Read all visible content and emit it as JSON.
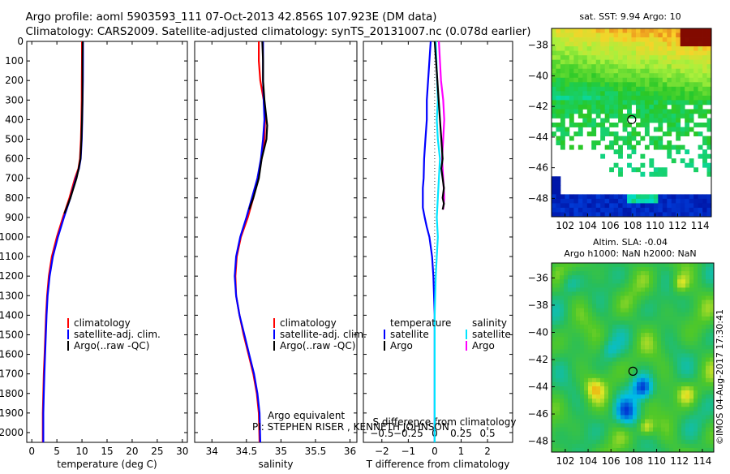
{
  "header": {
    "title_line1": "Argo profile: aoml 5903593_111 07-Oct-2013 42.856S 107.923E (DM data)",
    "title_line2": "Climatology: CARS2009. Satellite-adjusted climatology: synTS_20131007.nc (0.078d earlier)"
  },
  "colors": {
    "climatology": "#ff0000",
    "satellite": "#0000ff",
    "argo": "#000000",
    "sal_sat": "#00e5ff",
    "sal_argo": "#ff00ff"
  },
  "depth_axis": {
    "ticks": [
      0,
      100,
      200,
      300,
      400,
      500,
      600,
      700,
      800,
      900,
      1000,
      1100,
      1200,
      1300,
      1400,
      1500,
      1600,
      1700,
      1800,
      1900,
      2000
    ],
    "range": [
      0,
      2050
    ]
  },
  "chart_data": [
    {
      "type": "line",
      "name": "temperature",
      "xlabel": "temperature (deg C)",
      "ylabel": "depth",
      "xlim": [
        -1,
        31
      ],
      "ylim": [
        2050,
        0
      ],
      "xticks": [
        0,
        5,
        10,
        15,
        20,
        25,
        30
      ],
      "legend": {
        "placement": "lower-middle",
        "entries": [
          "climatology",
          "satellite-adj. clim.",
          "Argo(..raw -QC)"
        ]
      },
      "series": [
        {
          "name": "climatology",
          "color": "#ff0000",
          "x": [
            10.0,
            10.0,
            9.98,
            9.95,
            9.9,
            9.8,
            9.6,
            9.3,
            8.6,
            7.5,
            6.2,
            5.0,
            4.0,
            3.4,
            3.05,
            2.85,
            2.7,
            2.55,
            2.4,
            2.3,
            2.2,
            2.2
          ],
          "y": [
            0,
            100,
            200,
            300,
            400,
            500,
            600,
            650,
            700,
            800,
            900,
            1000,
            1100,
            1200,
            1300,
            1400,
            1500,
            1600,
            1700,
            1800,
            1900,
            2050
          ]
        },
        {
          "name": "satellite",
          "color": "#0000ff",
          "x": [
            10.2,
            10.2,
            10.18,
            10.12,
            10.05,
            9.95,
            9.75,
            9.4,
            8.8,
            7.7,
            6.4,
            5.2,
            4.2,
            3.55,
            3.15,
            2.95,
            2.8,
            2.65,
            2.5,
            2.4,
            2.3,
            2.3
          ],
          "y": [
            0,
            100,
            200,
            300,
            400,
            500,
            600,
            650,
            700,
            800,
            900,
            1000,
            1100,
            1200,
            1300,
            1400,
            1500,
            1600,
            1700,
            1800,
            1900,
            2050
          ]
        },
        {
          "name": "argo",
          "color": "#000000",
          "x": [
            10.15,
            10.1,
            10.1,
            10.08,
            10.0,
            9.9,
            9.7,
            9.35,
            8.9,
            7.7,
            6.5
          ],
          "y": [
            0,
            100,
            200,
            300,
            400,
            500,
            600,
            650,
            700,
            800,
            880
          ]
        }
      ]
    },
    {
      "type": "line",
      "name": "salinity",
      "xlabel": "salinity",
      "ylabel": "depth",
      "xlim": [
        33.75,
        36.1
      ],
      "ylim": [
        2050,
        0
      ],
      "xticks": [
        34,
        34.5,
        35,
        35.5,
        36
      ],
      "xticklabels": [
        "34",
        "34.5",
        "35",
        "35.5",
        "36"
      ],
      "legend": {
        "placement": "lower-middle",
        "entries": [
          "climatology",
          "satellite-adj. clim.",
          "Argo(..raw -QC)"
        ]
      },
      "annotation": "Argo equivalent",
      "pi_text": "PI: STEPHEN RISER , KENNETH JOHNSON",
      "series": [
        {
          "name": "climatology",
          "color": "#ff0000",
          "x": [
            34.68,
            34.68,
            34.7,
            34.75,
            34.77,
            34.76,
            34.72,
            34.66,
            34.6,
            34.52,
            34.42,
            34.36,
            34.34,
            34.35,
            34.4,
            34.46,
            34.53,
            34.6,
            34.65,
            34.68,
            34.69
          ],
          "y": [
            0,
            100,
            200,
            300,
            400,
            500,
            600,
            700,
            800,
            900,
            1000,
            1100,
            1200,
            1300,
            1400,
            1500,
            1600,
            1700,
            1800,
            1900,
            2050
          ]
        },
        {
          "name": "satellite",
          "color": "#0000ff",
          "x": [
            34.74,
            34.74,
            34.74,
            34.75,
            34.76,
            34.74,
            34.71,
            34.66,
            34.58,
            34.5,
            34.41,
            34.35,
            34.33,
            34.35,
            34.4,
            34.47,
            34.54,
            34.61,
            34.66,
            34.69,
            34.7
          ],
          "y": [
            0,
            100,
            200,
            300,
            400,
            500,
            600,
            700,
            800,
            900,
            1000,
            1100,
            1200,
            1300,
            1400,
            1500,
            1600,
            1700,
            1800,
            1900,
            2050
          ]
        },
        {
          "name": "argo",
          "color": "#000000",
          "x": [
            34.73,
            34.74,
            34.74,
            34.76,
            34.8,
            34.79,
            34.72,
            34.68,
            34.6,
            34.54
          ],
          "y": [
            0,
            100,
            200,
            300,
            430,
            500,
            600,
            700,
            800,
            860
          ]
        }
      ]
    },
    {
      "type": "line",
      "name": "difference",
      "xlabel": "T difference from climatology",
      "ylabel": "depth",
      "xlim": [
        -2.7,
        2.95
      ],
      "ylim": [
        2050,
        0
      ],
      "xticks": [
        -2,
        -1,
        0,
        1,
        2
      ],
      "xticklabels": [
        "−2",
        "−1",
        "0",
        "1",
        "2"
      ],
      "top_xlabel": "S difference from climatology",
      "top_xticks": [
        -0.5,
        -0.25,
        0,
        0.25,
        0.5
      ],
      "top_xticklabels": [
        "−0.5",
        "−0.25",
        "0",
        "0.25",
        "0.5"
      ],
      "legend": {
        "placement": "lower-middle",
        "headers": [
          "temperature",
          "salinity"
        ],
        "entries": [
          "satellite",
          "Argo",
          "satellite",
          "Argo"
        ]
      },
      "series": [
        {
          "name": "T satellite",
          "color": "#0000ff",
          "x": [
            -0.15,
            -0.2,
            -0.25,
            -0.3,
            -0.3,
            -0.35,
            -0.4,
            -0.42,
            -0.45,
            -0.45,
            -0.38,
            -0.3,
            -0.2,
            -0.1,
            -0.05,
            0,
            0,
            0,
            0
          ],
          "y": [
            0,
            100,
            200,
            300,
            400,
            500,
            600,
            700,
            750,
            850,
            900,
            950,
            1000,
            1100,
            1200,
            1400,
            1600,
            1800,
            2050
          ]
        },
        {
          "name": "S satellite",
          "color": "#00e5ff",
          "x": [
            0.01,
            0.02,
            0.03,
            0.02,
            0.03,
            0.05,
            0.04,
            0.03,
            0.02,
            0.03,
            0.02,
            0.01,
            0.0,
            0.0,
            0.0,
            0.0
          ],
          "y": [
            0,
            150,
            300,
            400,
            500,
            600,
            700,
            800,
            900,
            1000,
            1100,
            1200,
            1400,
            1600,
            1800,
            2050
          ]
        },
        {
          "name": "S argo",
          "color": "#ff00ff",
          "x": [
            0.04,
            0.05,
            0.06,
            0.08,
            0.09,
            0.08,
            0.07,
            0.08,
            0.09,
            0.08
          ],
          "y": [
            0,
            100,
            200,
            300,
            400,
            500,
            600,
            700,
            800,
            860
          ]
        },
        {
          "name": "T argo",
          "color": "#000000",
          "x": [
            0.0,
            0.05,
            0.1,
            0.15,
            0.2,
            0.25,
            0.3,
            0.25,
            0.3,
            0.35,
            0.3,
            0.35,
            0.3
          ],
          "y": [
            0,
            100,
            200,
            300,
            400,
            500,
            600,
            650,
            700,
            750,
            800,
            830,
            860
          ]
        }
      ]
    }
  ],
  "sst_map": {
    "title": "sat. SST: 9.94 Argo: 10",
    "lon_ticks": [
      102,
      104,
      106,
      108,
      110,
      112,
      114
    ],
    "lat_ticks": [
      -38,
      -40,
      -42,
      -44,
      -46,
      -48
    ],
    "xlim": [
      100.8,
      115
    ],
    "ylim": [
      -49.2,
      -36.9
    ],
    "argo_pos": {
      "lon": 107.923,
      "lat": -42.856
    }
  },
  "sla_map": {
    "title1": "Altim. SLA: -0.04",
    "title2": "Argo h1000: NaN h2000: NaN",
    "lon_ticks": [
      102,
      104,
      106,
      108,
      110,
      112,
      114
    ],
    "lat_ticks": [
      -36,
      -38,
      -40,
      -42,
      -44,
      -46,
      -48
    ],
    "xlim": [
      100.8,
      115
    ],
    "ylim": [
      -48.8,
      -34.9
    ],
    "argo_pos": {
      "lon": 107.923,
      "lat": -42.856
    }
  },
  "watermark": "©IMOS 04-Aug-2017 17:30:41"
}
